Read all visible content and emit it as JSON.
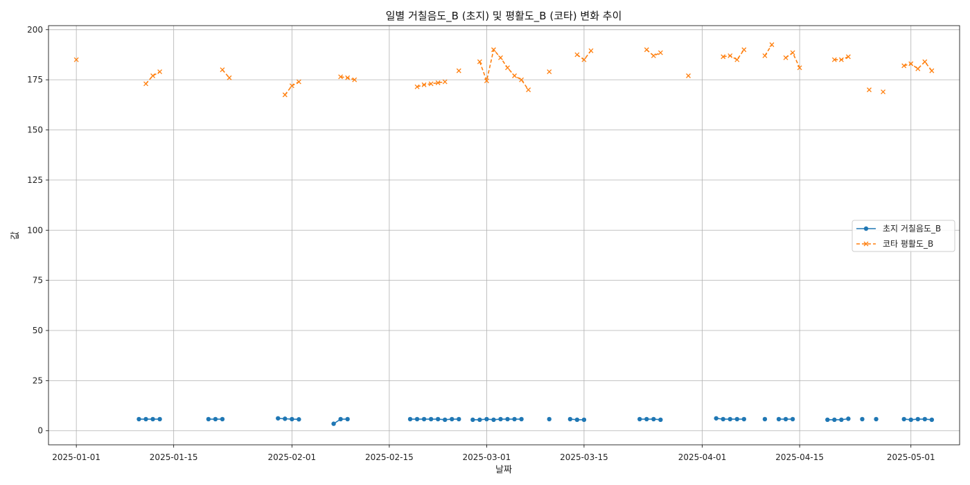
{
  "chart_data": {
    "type": "line",
    "title": "일별 거칠음도_B (초지) 및 평활도_B (코타) 변화 추이",
    "xlabel": "날짜",
    "ylabel": "값",
    "x_type": "date",
    "xlim": [
      "2024-12-28",
      "2025-05-08"
    ],
    "ylim": [
      -7,
      202
    ],
    "x_ticks": [
      "2025-01-01",
      "2025-01-15",
      "2025-02-01",
      "2025-02-15",
      "2025-03-01",
      "2025-03-15",
      "2025-04-01",
      "2025-04-15",
      "2025-05-01"
    ],
    "y_ticks": [
      0,
      25,
      50,
      75,
      100,
      125,
      150,
      175,
      200
    ],
    "grid": true,
    "legend_position": "center-right",
    "series": [
      {
        "name": "초지 거칠음도_B",
        "color": "#1f77b4",
        "line_style": "solid",
        "marker": "circle",
        "points": [
          [
            "2025-01-10",
            5.8
          ],
          [
            "2025-01-11",
            5.8
          ],
          [
            "2025-01-12",
            5.8
          ],
          [
            "2025-01-13",
            5.8
          ],
          [
            "2025-01-20",
            5.8
          ],
          [
            "2025-01-21",
            5.8
          ],
          [
            "2025-01-22",
            5.8
          ],
          [
            "2025-01-30",
            6.2
          ],
          [
            "2025-01-31",
            6.0
          ],
          [
            "2025-02-01",
            5.8
          ],
          [
            "2025-02-02",
            5.7
          ],
          [
            "2025-02-07",
            3.5
          ],
          [
            "2025-02-08",
            5.8
          ],
          [
            "2025-02-09",
            5.8
          ],
          [
            "2025-02-18",
            5.8
          ],
          [
            "2025-02-19",
            5.8
          ],
          [
            "2025-02-20",
            5.8
          ],
          [
            "2025-02-21",
            5.8
          ],
          [
            "2025-02-22",
            5.8
          ],
          [
            "2025-02-23",
            5.5
          ],
          [
            "2025-02-24",
            5.8
          ],
          [
            "2025-02-25",
            5.8
          ],
          [
            "2025-02-27",
            5.5
          ],
          [
            "2025-02-28",
            5.5
          ],
          [
            "2025-03-01",
            5.8
          ],
          [
            "2025-03-02",
            5.5
          ],
          [
            "2025-03-03",
            5.8
          ],
          [
            "2025-03-04",
            5.8
          ],
          [
            "2025-03-05",
            5.8
          ],
          [
            "2025-03-06",
            5.8
          ],
          [
            "2025-03-10",
            5.8
          ],
          [
            "2025-03-13",
            5.8
          ],
          [
            "2025-03-14",
            5.5
          ],
          [
            "2025-03-15",
            5.5
          ],
          [
            "2025-03-23",
            5.8
          ],
          [
            "2025-03-24",
            5.8
          ],
          [
            "2025-03-25",
            5.8
          ],
          [
            "2025-03-26",
            5.5
          ],
          [
            "2025-04-03",
            6.2
          ],
          [
            "2025-04-04",
            5.8
          ],
          [
            "2025-04-05",
            5.8
          ],
          [
            "2025-04-06",
            5.8
          ],
          [
            "2025-04-07",
            5.8
          ],
          [
            "2025-04-10",
            5.8
          ],
          [
            "2025-04-12",
            5.8
          ],
          [
            "2025-04-13",
            5.8
          ],
          [
            "2025-04-14",
            5.8
          ],
          [
            "2025-04-19",
            5.5
          ],
          [
            "2025-04-20",
            5.5
          ],
          [
            "2025-04-21",
            5.5
          ],
          [
            "2025-04-22",
            6.0
          ],
          [
            "2025-04-24",
            5.8
          ],
          [
            "2025-04-26",
            5.8
          ],
          [
            "2025-04-30",
            5.8
          ],
          [
            "2025-05-01",
            5.5
          ],
          [
            "2025-05-02",
            5.8
          ],
          [
            "2025-05-03",
            5.8
          ],
          [
            "2025-05-04",
            5.5
          ]
        ]
      },
      {
        "name": "코타 평활도_B",
        "color": "#ff7f0e",
        "line_style": "dashed",
        "marker": "x",
        "points": [
          [
            "2025-01-01",
            185
          ],
          [
            "2025-01-11",
            173
          ],
          [
            "2025-01-12",
            177
          ],
          [
            "2025-01-13",
            179
          ],
          [
            "2025-01-22",
            180
          ],
          [
            "2025-01-23",
            176
          ],
          [
            "2025-01-31",
            167.5
          ],
          [
            "2025-02-01",
            172
          ],
          [
            "2025-02-02",
            174
          ],
          [
            "2025-02-08",
            176.5
          ],
          [
            "2025-02-09",
            176
          ],
          [
            "2025-02-10",
            175
          ],
          [
            "2025-02-19",
            171.5
          ],
          [
            "2025-02-20",
            172.5
          ],
          [
            "2025-02-21",
            173
          ],
          [
            "2025-02-22",
            173.5
          ],
          [
            "2025-02-23",
            174
          ],
          [
            "2025-02-25",
            179.5
          ],
          [
            "2025-02-28",
            184
          ],
          [
            "2025-03-01",
            174.5
          ],
          [
            "2025-03-02",
            190
          ],
          [
            "2025-03-03",
            186
          ],
          [
            "2025-03-04",
            181
          ],
          [
            "2025-03-05",
            177
          ],
          [
            "2025-03-06",
            175
          ],
          [
            "2025-03-07",
            170
          ],
          [
            "2025-03-10",
            179
          ],
          [
            "2025-03-14",
            187.5
          ],
          [
            "2025-03-15",
            185
          ],
          [
            "2025-03-16",
            189.5
          ],
          [
            "2025-03-24",
            190
          ],
          [
            "2025-03-25",
            187
          ],
          [
            "2025-03-26",
            188.5
          ],
          [
            "2025-03-30",
            177
          ],
          [
            "2025-04-04",
            186.5
          ],
          [
            "2025-04-05",
            187
          ],
          [
            "2025-04-06",
            185
          ],
          [
            "2025-04-07",
            190
          ],
          [
            "2025-04-10",
            187
          ],
          [
            "2025-04-11",
            192.5
          ],
          [
            "2025-04-13",
            186
          ],
          [
            "2025-04-14",
            188.5
          ],
          [
            "2025-04-15",
            181
          ],
          [
            "2025-04-20",
            185
          ],
          [
            "2025-04-21",
            185
          ],
          [
            "2025-04-22",
            186.5
          ],
          [
            "2025-04-25",
            170
          ],
          [
            "2025-04-27",
            169
          ],
          [
            "2025-04-30",
            182
          ],
          [
            "2025-05-01",
            183
          ],
          [
            "2025-05-02",
            180.5
          ],
          [
            "2025-05-03",
            184
          ],
          [
            "2025-05-04",
            179.5
          ]
        ]
      }
    ]
  }
}
